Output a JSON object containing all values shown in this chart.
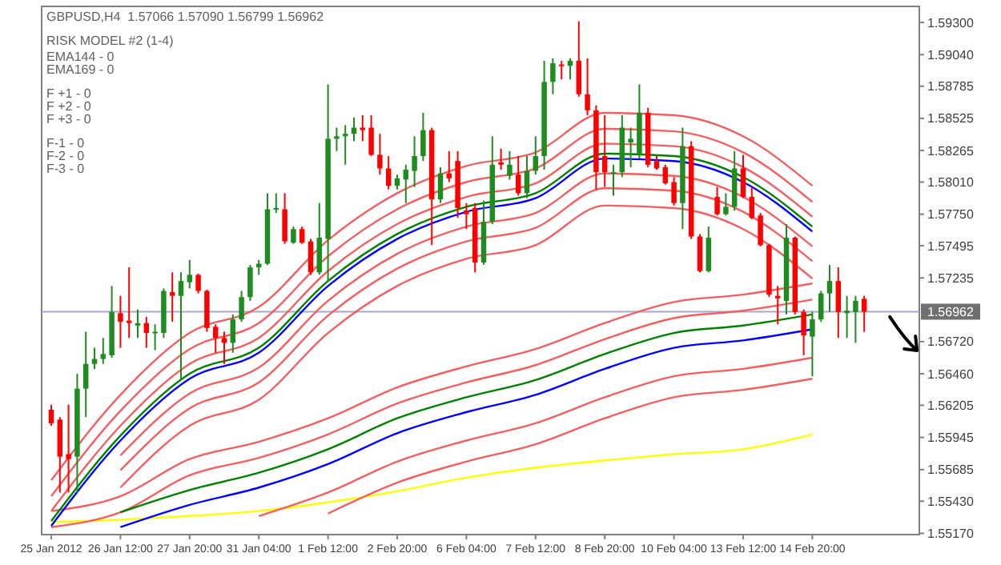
{
  "chart_data": {
    "type": "candlestick",
    "title": "GBPUSD,H4  1.57066 1.57090 1.56799 1.56962",
    "subtitle": "RISK MODEL #2 (1-4)",
    "annotations": [
      "EMA144 - 0",
      "EMA169 - 0",
      "F +1 - 0",
      "F +2 - 0",
      "F +3 - 0",
      "F-1 - 0",
      "F-2 - 0",
      "F-3 - 0"
    ],
    "categories": [
      "25 Jan 2012",
      null,
      null,
      null,
      null,
      null,
      null,
      null,
      "26 Jan 12:00",
      null,
      null,
      null,
      null,
      null,
      null,
      null,
      "27 Jan 20:00",
      null,
      null,
      null,
      null,
      null,
      null,
      null,
      "31 Jan 04:00",
      null,
      null,
      null,
      null,
      null,
      null,
      null,
      "1 Feb 12:00",
      null,
      null,
      null,
      null,
      null,
      null,
      null,
      "2 Feb 20:00",
      null,
      null,
      null,
      null,
      null,
      null,
      null,
      "6 Feb 04:00",
      null,
      null,
      null,
      null,
      null,
      null,
      null,
      "7 Feb 12:00",
      null,
      null,
      null,
      null,
      null,
      null,
      null,
      "8 Feb 20:00",
      null,
      null,
      null,
      null,
      null,
      null,
      null,
      "10 Feb 04:00",
      null,
      null,
      null,
      null,
      null,
      null,
      null,
      "13 Feb 12:00",
      null,
      null,
      null,
      null,
      null,
      null,
      null,
      "14 Feb 20:00",
      null,
      null,
      null,
      null,
      null,
      null
    ],
    "ylim": [
      1.5516,
      1.5943
    ],
    "yticks": [
      {
        "value": 1.593,
        "label": "1.59300"
      },
      {
        "value": 1.5904,
        "label": "1.59040"
      },
      {
        "value": 1.58785,
        "label": "1.58785"
      },
      {
        "value": 1.58525,
        "label": "1.58525"
      },
      {
        "value": 1.58265,
        "label": "1.58265"
      },
      {
        "value": 1.5801,
        "label": "1.58010"
      },
      {
        "value": 1.5775,
        "label": "1.57750"
      },
      {
        "value": 1.57495,
        "label": "1.57495"
      },
      {
        "value": 1.57235,
        "label": "1.57235"
      },
      {
        "value": 1.5672,
        "label": "1.56720"
      },
      {
        "value": 1.5646,
        "label": "1.56460"
      },
      {
        "value": 1.56205,
        "label": "1.56205"
      },
      {
        "value": 1.55945,
        "label": "1.55945"
      },
      {
        "value": 1.55685,
        "label": "1.55685"
      },
      {
        "value": 1.5543,
        "label": "1.55430"
      },
      {
        "value": 1.5517,
        "label": "1.55170"
      }
    ],
    "ref_lines": [
      {
        "axis": "y",
        "value": 1.56962,
        "label": "1.56962",
        "color": "#a8a8c8"
      }
    ],
    "grid": false,
    "ohlc": [
      [
        1.5617,
        1.5621,
        1.5604,
        1.5606
      ],
      [
        1.5609,
        1.5611,
        1.555,
        1.5579
      ],
      [
        1.5581,
        1.5621,
        1.555,
        1.5577
      ],
      [
        1.5579,
        1.5646,
        1.555,
        1.5634
      ],
      [
        1.5634,
        1.568,
        1.5611,
        1.5654
      ],
      [
        1.5654,
        1.5667,
        1.565,
        1.5658
      ],
      [
        1.5658,
        1.5675,
        1.5654,
        1.5662
      ],
      [
        1.5661,
        1.5717,
        1.5659,
        1.5696
      ],
      [
        1.5695,
        1.5709,
        1.5667,
        1.5688
      ],
      [
        1.5689,
        1.5732,
        1.5675,
        1.5687
      ],
      [
        1.5685,
        1.5698,
        1.5675,
        1.5687
      ],
      [
        1.5687,
        1.5692,
        1.5667,
        1.5679
      ],
      [
        1.5679,
        1.5686,
        1.5665,
        1.568
      ],
      [
        1.5679,
        1.5715,
        1.5675,
        1.5713
      ],
      [
        1.5712,
        1.5728,
        1.5688,
        1.5709
      ],
      [
        1.5709,
        1.5728,
        1.5642,
        1.5721
      ],
      [
        1.572,
        1.5738,
        1.5715,
        1.5726
      ],
      [
        1.5726,
        1.5727,
        1.5711,
        1.5713
      ],
      [
        1.5713,
        1.5714,
        1.568,
        1.5683
      ],
      [
        1.5684,
        1.5686,
        1.5663,
        1.5675
      ],
      [
        1.5675,
        1.568,
        1.5654,
        1.5671
      ],
      [
        1.5671,
        1.5694,
        1.5663,
        1.569
      ],
      [
        1.569,
        1.5713,
        1.5688,
        1.5708
      ],
      [
        1.5708,
        1.5734,
        1.5705,
        1.5732
      ],
      [
        1.5732,
        1.5738,
        1.5726,
        1.5735
      ],
      [
        1.5735,
        1.5792,
        1.5734,
        1.5779
      ],
      [
        1.5779,
        1.5792,
        1.5776,
        1.578
      ],
      [
        1.5779,
        1.5792,
        1.5751,
        1.5753
      ],
      [
        1.5752,
        1.5765,
        1.5751,
        1.5763
      ],
      [
        1.5763,
        1.5765,
        1.5751,
        1.5752
      ],
      [
        1.5753,
        1.5755,
        1.5726,
        1.5728
      ],
      [
        1.5728,
        1.5784,
        1.5726,
        1.5756
      ],
      [
        1.5755,
        1.588,
        1.5721,
        1.5836
      ],
      [
        1.5836,
        1.5845,
        1.5826,
        1.5838
      ],
      [
        1.5838,
        1.5847,
        1.5815,
        1.584
      ],
      [
        1.584,
        1.5853,
        1.5834,
        1.5845
      ],
      [
        1.5845,
        1.5855,
        1.5834,
        1.5843
      ],
      [
        1.5845,
        1.5855,
        1.5822,
        1.5823
      ],
      [
        1.5823,
        1.584,
        1.5807,
        1.5812
      ],
      [
        1.5812,
        1.5822,
        1.5795,
        1.5798
      ],
      [
        1.5798,
        1.5807,
        1.5795,
        1.5804
      ],
      [
        1.5803,
        1.5815,
        1.5784,
        1.5811
      ],
      [
        1.581,
        1.5838,
        1.5797,
        1.5822
      ],
      [
        1.5822,
        1.5857,
        1.5818,
        1.5843
      ],
      [
        1.5843,
        1.5845,
        1.575,
        1.5787
      ],
      [
        1.5787,
        1.5813,
        1.5784,
        1.5808
      ],
      [
        1.5808,
        1.5826,
        1.5801,
        1.5804
      ],
      [
        1.5818,
        1.5826,
        1.5772,
        1.578
      ],
      [
        1.5778,
        1.5784,
        1.5763,
        1.5775
      ],
      [
        1.578,
        1.5784,
        1.5728,
        1.5736
      ],
      [
        1.5736,
        1.5786,
        1.5734,
        1.5769
      ],
      [
        1.5769,
        1.5838,
        1.5767,
        1.5815
      ],
      [
        1.5817,
        1.5828,
        1.5811,
        1.5815
      ],
      [
        1.5806,
        1.5826,
        1.5803,
        1.5815
      ],
      [
        1.5807,
        1.5822,
        1.579,
        1.5792
      ],
      [
        1.5792,
        1.5822,
        1.5788,
        1.581
      ],
      [
        1.581,
        1.5838,
        1.5807,
        1.5822
      ],
      [
        1.5822,
        1.5899,
        1.5811,
        1.5882
      ],
      [
        1.5882,
        1.5901,
        1.5872,
        1.5897
      ],
      [
        1.5896,
        1.5899,
        1.5884,
        1.5895
      ],
      [
        1.5895,
        1.5901,
        1.5884,
        1.5899
      ],
      [
        1.5899,
        1.5931,
        1.587,
        1.5872
      ],
      [
        1.5872,
        1.5901,
        1.5855,
        1.5859
      ],
      [
        1.5859,
        1.5863,
        1.5795,
        1.5809
      ],
      [
        1.5822,
        1.5855,
        1.5797,
        1.5809
      ],
      [
        1.5808,
        1.5815,
        1.579,
        1.5809
      ],
      [
        1.5809,
        1.5855,
        1.5805,
        1.5845
      ],
      [
        1.5833,
        1.5845,
        1.5813,
        1.5836
      ],
      [
        1.5824,
        1.588,
        1.582,
        1.5857
      ],
      [
        1.5857,
        1.5861,
        1.5813,
        1.5815
      ],
      [
        1.5818,
        1.5822,
        1.5811,
        1.5812
      ],
      [
        1.5813,
        1.5815,
        1.5799,
        1.58
      ],
      [
        1.5801,
        1.5805,
        1.5782,
        1.5784
      ],
      [
        1.5784,
        1.5845,
        1.5763,
        1.583
      ],
      [
        1.583,
        1.5834,
        1.5755,
        1.5757
      ],
      [
        1.5757,
        1.5759,
        1.5728,
        1.5729
      ],
      [
        1.5729,
        1.5765,
        1.5728,
        1.5756
      ],
      [
        1.5789,
        1.5797,
        1.5774,
        1.5775
      ],
      [
        1.5775,
        1.5792,
        1.5774,
        1.5781
      ],
      [
        1.5781,
        1.5826,
        1.5778,
        1.5812
      ],
      [
        1.5812,
        1.5823,
        1.5788,
        1.5789
      ],
      [
        1.5789,
        1.5797,
        1.5771,
        1.5772
      ],
      [
        1.5774,
        1.5776,
        1.5749,
        1.575
      ],
      [
        1.575,
        1.5751,
        1.5708,
        1.571
      ],
      [
        1.5709,
        1.5717,
        1.5686,
        1.5707
      ],
      [
        1.5705,
        1.5767,
        1.5694,
        1.5756
      ],
      [
        1.5756,
        1.5757,
        1.5694,
        1.5696
      ],
      [
        1.5696,
        1.5698,
        1.5661,
        1.5677
      ],
      [
        1.5676,
        1.5696,
        1.5644,
        1.569
      ],
      [
        1.569,
        1.5713,
        1.5688,
        1.5711
      ],
      [
        1.5711,
        1.5734,
        1.5696,
        1.5721
      ],
      [
        1.5721,
        1.5732,
        1.5675,
        1.5696
      ],
      [
        1.5695,
        1.5709,
        1.5675,
        1.5697
      ],
      [
        1.5696,
        1.5709,
        1.5671,
        1.5705
      ],
      [
        1.57066,
        1.5709,
        1.56799,
        1.56962
      ]
    ],
    "colors": [
      "#ff0000",
      "#ff0000",
      "#ff0000",
      "#1e8c1e",
      "#1e8c1e",
      "#1e8c1e",
      "#1e8c1e",
      "#1e8c1e",
      "#ff0000",
      "#ff0000",
      "#1e8c1e",
      "#ff0000",
      "#1e8c1e",
      "#1e8c1e",
      "#ff0000",
      "#1e8c1e",
      "#1e8c1e",
      "#ff0000",
      "#ff0000",
      "#ff0000",
      "#ff0000",
      "#1e8c1e",
      "#1e8c1e",
      "#1e8c1e",
      "#1e8c1e",
      "#1e8c1e",
      "#1e8c1e",
      "#ff0000",
      "#1e8c1e",
      "#ff0000",
      "#ff0000",
      "#1e8c1e",
      "#1e8c1e",
      "#1e8c1e",
      "#1e8c1e",
      "#1e8c1e",
      "#ff0000",
      "#ff0000",
      "#ff0000",
      "#ff0000",
      "#1e8c1e",
      "#1e8c1e",
      "#1e8c1e",
      "#1e8c1e",
      "#ff0000",
      "#1e8c1e",
      "#ff0000",
      "#ff0000",
      "#ff0000",
      "#ff0000",
      "#1e8c1e",
      "#1e8c1e",
      "#ff0000",
      "#1e8c1e",
      "#ff0000",
      "#1e8c1e",
      "#1e8c1e",
      "#1e8c1e",
      "#1e8c1e",
      "#ff0000",
      "#1e8c1e",
      "#ff0000",
      "#ff0000",
      "#ff0000",
      "#ff0000",
      "#1e8c1e",
      "#1e8c1e",
      "#1e8c1e",
      "#1e8c1e",
      "#ff0000",
      "#ff0000",
      "#ff0000",
      "#ff0000",
      "#1e8c1e",
      "#ff0000",
      "#ff0000",
      "#1e8c1e",
      "#ff0000",
      "#1e8c1e",
      "#1e8c1e",
      "#ff0000",
      "#ff0000",
      "#ff0000",
      "#ff0000",
      "#ff0000",
      "#1e8c1e",
      "#ff0000",
      "#ff0000",
      "#1e8c1e",
      "#1e8c1e",
      "#1e8c1e",
      "#ff0000",
      "#1e8c1e",
      "#1e8c1e",
      "#ff0000"
    ],
    "series": [
      {
        "type": "line",
        "color": "#ffff00",
        "x": [
          "25 Jan 2012",
          "26 Jan 12:00",
          "27 Jan 20:00",
          "31 Jan 04:00",
          "1 Feb 12:00",
          "2 Feb 20:00",
          "6 Feb 04:00",
          "7 Feb 12:00",
          "8 Feb 20:00",
          "10 Feb 04:00",
          "13 Feb 12:00",
          "14 Feb 20:00"
        ],
        "values": [
          1.5526,
          1.5528,
          1.5531,
          1.5535,
          1.5542,
          1.5551,
          1.5562,
          1.557,
          1.5576,
          1.5581,
          1.5585,
          1.5597
        ]
      },
      {
        "type": "line",
        "color": "#f06060",
        "x": [
          "1 Feb 12:00",
          "2 Feb 20:00",
          "6 Feb 04:00",
          "7 Feb 12:00",
          "8 Feb 20:00",
          "10 Feb 04:00",
          "13 Feb 12:00",
          "14 Feb 20:00"
        ],
        "values": [
          1.5533,
          1.5558,
          1.5575,
          1.5589,
          1.561,
          1.5627,
          1.5633,
          1.5642
        ]
      },
      {
        "type": "line",
        "color": "#f06060",
        "x": [
          "31 Jan 04:00",
          "1 Feb 12:00",
          "2 Feb 20:00",
          "6 Feb 04:00",
          "7 Feb 12:00",
          "8 Feb 20:00",
          "10 Feb 04:00",
          "13 Feb 12:00",
          "14 Feb 20:00"
        ],
        "values": [
          1.5531,
          1.555,
          1.5575,
          1.5592,
          1.5606,
          1.5627,
          1.5644,
          1.565,
          1.5659
        ]
      },
      {
        "type": "line",
        "color": "#f06060",
        "x": [
          "25 Jan 2012",
          "26 Jan 12:00",
          "27 Jan 20:00",
          "31 Jan 04:00",
          "1 Feb 12:00",
          "2 Feb 20:00",
          "6 Feb 04:00",
          "7 Feb 12:00",
          "8 Feb 20:00",
          "10 Feb 04:00",
          "13 Feb 12:00",
          "14 Feb 20:00"
        ],
        "values": [
          1.5522,
          1.5534,
          1.5564,
          1.5578,
          1.5597,
          1.5622,
          1.5639,
          1.5653,
          1.5674,
          1.5691,
          1.5697,
          1.5706
        ]
      },
      {
        "type": "line",
        "color": "#f06060",
        "x": [
          "25 Jan 2012",
          "26 Jan 12:00",
          "27 Jan 20:00",
          "31 Jan 04:00",
          "1 Feb 12:00",
          "2 Feb 20:00",
          "6 Feb 04:00",
          "7 Feb 12:00",
          "8 Feb 20:00",
          "10 Feb 04:00",
          "13 Feb 12:00",
          "14 Feb 20:00"
        ],
        "values": [
          1.5535,
          1.5547,
          1.5577,
          1.5591,
          1.561,
          1.5635,
          1.5652,
          1.5666,
          1.5687,
          1.5704,
          1.571,
          1.5719
        ]
      },
      {
        "type": "line",
        "color": "#008000",
        "x": [
          "26 Jan 12:00",
          "27 Jan 20:00",
          "31 Jan 04:00",
          "1 Feb 12:00",
          "2 Feb 20:00",
          "6 Feb 04:00",
          "7 Feb 12:00",
          "8 Feb 20:00",
          "10 Feb 04:00",
          "13 Feb 12:00",
          "14 Feb 20:00"
        ],
        "values": [
          1.5534,
          1.5552,
          1.5566,
          1.5585,
          1.561,
          1.5627,
          1.5641,
          1.5662,
          1.5679,
          1.5685,
          1.5694
        ]
      },
      {
        "type": "line",
        "color": "#0000ff",
        "x": [
          "26 Jan 12:00",
          "27 Jan 20:00",
          "31 Jan 04:00",
          "1 Feb 12:00",
          "2 Feb 20:00",
          "6 Feb 04:00",
          "7 Feb 12:00",
          "8 Feb 20:00",
          "10 Feb 04:00",
          "13 Feb 12:00",
          "14 Feb 20:00"
        ],
        "values": [
          1.5522,
          1.554,
          1.5554,
          1.5573,
          1.5598,
          1.5615,
          1.5629,
          1.565,
          1.5667,
          1.5673,
          1.5682
        ]
      },
      {
        "type": "line",
        "color": "#f06060",
        "x": [
          "26 Jan 12:00",
          "27 Jan 20:00",
          "31 Jan 04:00",
          "1 Feb 12:00",
          "2 Feb 20:00",
          "6 Feb 04:00",
          "7 Feb 12:00",
          "8 Feb 20:00",
          "10 Feb 04:00",
          "13 Feb 12:00",
          "14 Feb 20:00"
        ],
        "values": [
          1.5554,
          1.5604,
          1.5625,
          1.5679,
          1.5717,
          1.5739,
          1.575,
          1.5782,
          1.578,
          1.5763,
          1.5723
        ]
      },
      {
        "type": "line",
        "color": "#f06060",
        "x": [
          "26 Jan 12:00",
          "27 Jan 20:00",
          "31 Jan 04:00",
          "1 Feb 12:00",
          "2 Feb 20:00",
          "6 Feb 04:00",
          "7 Feb 12:00",
          "8 Feb 20:00",
          "10 Feb 04:00",
          "13 Feb 12:00",
          "14 Feb 20:00"
        ],
        "values": [
          1.5568,
          1.5618,
          1.5639,
          1.5693,
          1.5731,
          1.5753,
          1.5764,
          1.5796,
          1.5794,
          1.5777,
          1.5737
        ]
      },
      {
        "type": "line",
        "color": "#f06060",
        "x": [
          "26 Jan 12:00",
          "27 Jan 20:00",
          "31 Jan 04:00",
          "1 Feb 12:00",
          "2 Feb 20:00",
          "6 Feb 04:00",
          "7 Feb 12:00",
          "8 Feb 20:00",
          "10 Feb 04:00",
          "13 Feb 12:00",
          "14 Feb 20:00"
        ],
        "values": [
          1.558,
          1.563,
          1.5651,
          1.5705,
          1.5743,
          1.5765,
          1.5776,
          1.5808,
          1.5806,
          1.5789,
          1.5749
        ]
      },
      {
        "type": "line",
        "color": "#f06060",
        "x": [
          "25 Jan 2012",
          "26 Jan 12:00",
          "27 Jan 20:00",
          "31 Jan 04:00",
          "1 Feb 12:00",
          "2 Feb 20:00",
          "6 Feb 04:00",
          "7 Feb 12:00",
          "8 Feb 20:00",
          "10 Feb 04:00",
          "13 Feb 12:00",
          "14 Feb 20:00"
        ],
        "values": [
          1.5535,
          1.5604,
          1.5654,
          1.5675,
          1.5729,
          1.5767,
          1.5789,
          1.58,
          1.5832,
          1.583,
          1.5813,
          1.5773
        ]
      },
      {
        "type": "line",
        "color": "#f06060",
        "x": [
          "25 Jan 2012",
          "26 Jan 12:00",
          "27 Jan 20:00",
          "31 Jan 04:00",
          "1 Feb 12:00",
          "2 Feb 20:00",
          "6 Feb 04:00",
          "7 Feb 12:00",
          "8 Feb 20:00",
          "10 Feb 04:00",
          "13 Feb 12:00",
          "14 Feb 20:00"
        ],
        "values": [
          1.5547,
          1.5616,
          1.5666,
          1.5687,
          1.5741,
          1.5779,
          1.5801,
          1.5812,
          1.5844,
          1.5842,
          1.5825,
          1.5785
        ]
      },
      {
        "type": "line",
        "color": "#f06060",
        "x": [
          "25 Jan 2012",
          "26 Jan 12:00",
          "27 Jan 20:00",
          "31 Jan 04:00",
          "1 Feb 12:00",
          "2 Feb 20:00",
          "6 Feb 04:00",
          "7 Feb 12:00",
          "8 Feb 20:00",
          "10 Feb 04:00",
          "13 Feb 12:00",
          "14 Feb 20:00"
        ],
        "values": [
          1.556,
          1.5629,
          1.5679,
          1.57,
          1.5754,
          1.5792,
          1.5814,
          1.5825,
          1.5857,
          1.5855,
          1.5838,
          1.5798
        ]
      },
      {
        "type": "line",
        "color": "#008000",
        "x": [
          "25 Jan 2012",
          "26 Jan 12:00",
          "27 Jan 20:00",
          "31 Jan 04:00",
          "1 Feb 12:00",
          "2 Feb 20:00",
          "6 Feb 04:00",
          "7 Feb 12:00",
          "8 Feb 20:00",
          "10 Feb 04:00",
          "13 Feb 12:00",
          "14 Feb 20:00"
        ],
        "values": [
          1.5527,
          1.5596,
          1.5646,
          1.5667,
          1.5721,
          1.5759,
          1.5781,
          1.5792,
          1.5824,
          1.5822,
          1.5805,
          1.5765
        ]
      },
      {
        "type": "line",
        "color": "#0000ff",
        "x": [
          "25 Jan 2012",
          "26 Jan 12:00",
          "27 Jan 20:00",
          "31 Jan 04:00",
          "1 Feb 12:00",
          "2 Feb 20:00",
          "6 Feb 04:00",
          "7 Feb 12:00",
          "8 Feb 20:00",
          "10 Feb 04:00",
          "13 Feb 12:00",
          "14 Feb 20:00"
        ],
        "values": [
          1.5523,
          1.5592,
          1.5642,
          1.5663,
          1.5717,
          1.5755,
          1.5777,
          1.5788,
          1.582,
          1.5818,
          1.5801,
          1.5761
        ]
      }
    ]
  }
}
